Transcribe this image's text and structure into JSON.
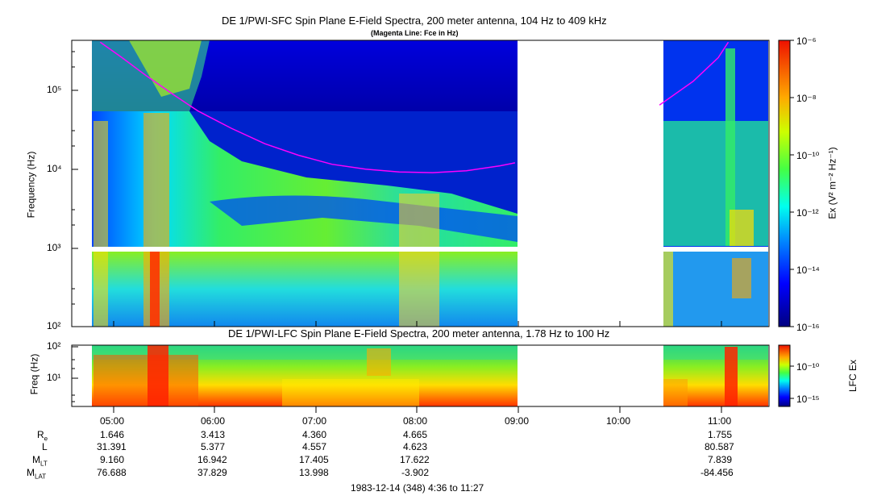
{
  "panel1": {
    "title": "DE 1/PWI-SFC  Spin Plane E-Field Spectra, 200 meter antenna, 104 Hz to 409 kHz",
    "subtitle": "(Magenta Line: Fce in Hz)",
    "ylabel": "Frequency (Hz)",
    "colorbar_label": "Ex (V² m⁻² Hz⁻¹)",
    "colorbar_ticks": [
      "10⁻⁶",
      "10⁻⁸",
      "10⁻¹⁰",
      "10⁻¹²",
      "10⁻¹⁴",
      "10⁻¹⁶"
    ],
    "y_ticks": [
      "10⁵",
      "10⁴",
      "10³",
      "10²"
    ]
  },
  "panel2": {
    "title": "DE 1/PWI-LFC  Spin Plane E-Field Spectra, 200 meter antenna, 1.78 Hz to 100 Hz",
    "ylabel": "Freq (Hz)",
    "colorbar_label": "LFC Ex",
    "colorbar_ticks": [
      "10⁻¹⁰",
      "10⁻¹⁵"
    ],
    "y_ticks": [
      "10²",
      "10¹"
    ]
  },
  "x_ticks": [
    "05:00",
    "06:00",
    "07:00",
    "08:00",
    "09:00",
    "10:00",
    "11:00"
  ],
  "ephemeris": {
    "rows": [
      {
        "label": "R",
        "sub": "e",
        "values": [
          "1.646",
          "3.413",
          "4.360",
          "4.665",
          "1.755"
        ]
      },
      {
        "label": "L",
        "sub": "",
        "values": [
          "31.391",
          "5.377",
          "4.557",
          "4.623",
          "80.587"
        ]
      },
      {
        "label": "M",
        "sub": "LT",
        "values": [
          "9.160",
          "16.942",
          "17.405",
          "17.622",
          "7.839"
        ]
      },
      {
        "label": "M",
        "sub": "LAT",
        "values": [
          "76.688",
          "37.829",
          "13.998",
          "-3.902",
          "-84.456"
        ]
      }
    ]
  },
  "footer": "1983-12-14 (348) 4:36 to 11:27",
  "chart_data": {
    "type": "heatmap",
    "title": "DE 1/PWI-SFC  Spin Plane E-Field Spectra, 200 meter antenna, 104 Hz to 409 kHz",
    "x": [
      "05:00",
      "06:00",
      "07:00",
      "08:00",
      "09:00",
      "10:00",
      "11:00"
    ],
    "xlim": [
      "04:36",
      "11:27"
    ],
    "ylabel": "Frequency (Hz)",
    "ylim": [
      100,
      409000
    ],
    "y_scale": "log",
    "data_gap": [
      "08:59",
      "10:25"
    ],
    "series": [
      {
        "name": "Fce",
        "type": "line",
        "color": "#ff00ff",
        "x": [
          "04:52",
          "05:05",
          "05:20",
          "05:35",
          "05:50",
          "06:10",
          "06:30",
          "06:50",
          "07:10",
          "07:30",
          "07:50",
          "08:10",
          "08:30",
          "08:50",
          "08:59",
          "10:25",
          "10:45",
          "11:00",
          "11:06"
        ],
        "y": [
          409000,
          260000,
          150000,
          90000,
          55000,
          33000,
          21000,
          15000,
          11500,
          10000,
          9200,
          9000,
          9500,
          11000,
          12000,
          65000,
          130000,
          260000,
          409000
        ]
      }
    ]
  }
}
